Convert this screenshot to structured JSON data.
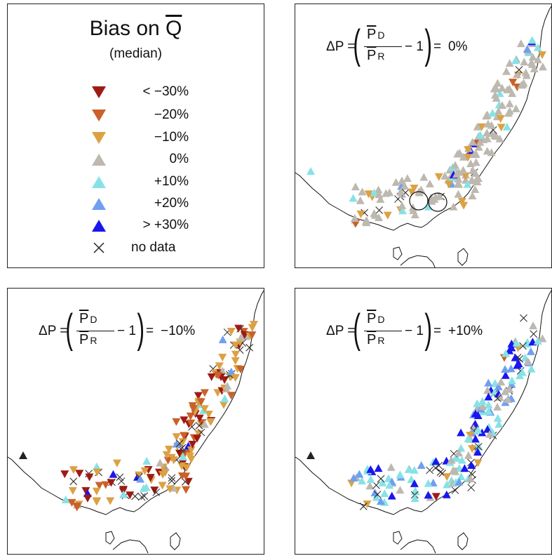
{
  "legend": {
    "title_prefix": "Bias on ",
    "title_var": "Q",
    "subtitle": "(median)",
    "items": [
      {
        "label": "< −30%",
        "color": "#9e1b15",
        "shape": "down"
      },
      {
        "label": "−20%",
        "color": "#c9612a",
        "shape": "down"
      },
      {
        "label": "−10%",
        "color": "#dba144",
        "shape": "down"
      },
      {
        "label": "0%",
        "color": "#bdb8b0",
        "shape": "up"
      },
      {
        "label": "+10%",
        "color": "#86e2e6",
        "shape": "up"
      },
      {
        "label": "+20%",
        "color": "#6f9ff0",
        "shape": "up"
      },
      {
        "label": "> +30%",
        "color": "#1a16ee",
        "shape": "up"
      },
      {
        "label": "no data",
        "color": "#222222",
        "shape": "cross"
      }
    ]
  },
  "formula": {
    "lhs": "ΔP =",
    "num_var": "P",
    "num_sub": "D",
    "den_var": "P",
    "den_sub": "R",
    "minus_one": "− 1",
    "eq": "="
  },
  "panels": {
    "top_right": {
      "dp_value": "0%"
    },
    "bottom_left": {
      "dp_value": "−10%"
    },
    "bottom_right": {
      "dp_value": "+10%"
    }
  }
}
